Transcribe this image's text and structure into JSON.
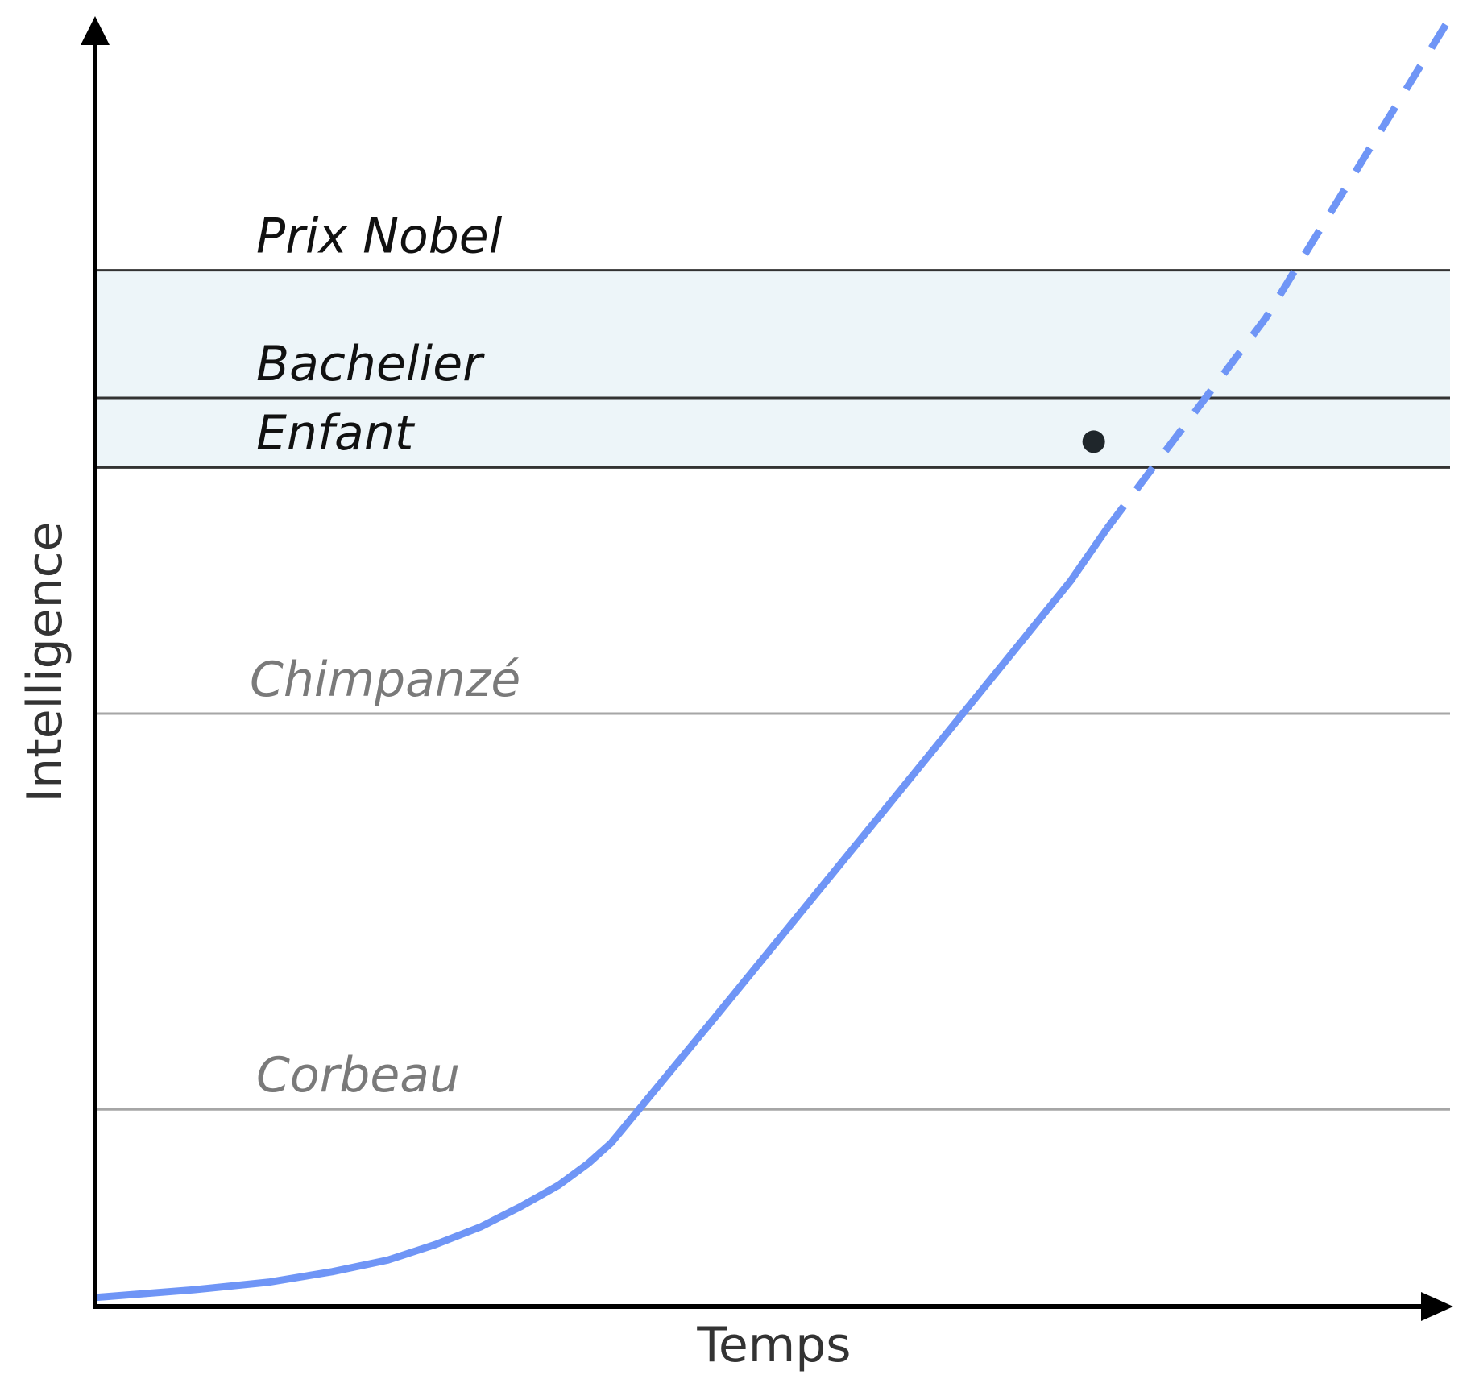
{
  "chart_data": {
    "type": "line",
    "title": "",
    "xlabel": "Temps",
    "ylabel": "Intelligence",
    "grid": false,
    "legend": "none",
    "xlim": [
      0,
      100
    ],
    "ylim": [
      0,
      100
    ],
    "colors": {
      "curve": "#6f95f6",
      "band": "#edf5f9",
      "human_line": "#333333",
      "animal_line": "#a6a6a6",
      "human_label": "#111111",
      "animal_label": "#7a7a7a",
      "marker": "#1f262b",
      "axis": "#000000"
    },
    "levels": [
      {
        "id": "corbeau",
        "label": "Corbeau",
        "y": 15.3,
        "kind": "animal"
      },
      {
        "id": "chimpanze",
        "label": "Chimpanzé",
        "y": 46.0,
        "kind": "animal"
      },
      {
        "id": "enfant",
        "label": "Enfant",
        "y": 65.1,
        "kind": "human"
      },
      {
        "id": "bachelier",
        "label": "Bachelier",
        "y": 70.5,
        "kind": "human"
      },
      {
        "id": "prix-nobel",
        "label": "Prix Nobel",
        "y": 80.4,
        "kind": "human"
      }
    ],
    "band": {
      "from": 65.1,
      "to": 80.4
    },
    "series": [
      {
        "style": "solid",
        "x": [
          0,
          7.3,
          12.9,
          17.5,
          21.6,
          25.1,
          28.5,
          31.5,
          34.2,
          36.4,
          38.1,
          45.8,
          57.7,
          72.0,
          74.7
        ],
        "y": [
          0.7,
          1.3,
          1.9,
          2.7,
          3.6,
          4.8,
          6.2,
          7.8,
          9.4,
          11.1,
          12.7,
          22.5,
          37.8,
          56.3,
          60.4
        ]
      },
      {
        "style": "dashed",
        "x": [
          74.7,
          86.4,
          100
        ],
        "y": [
          60.4,
          76.7,
          100
        ]
      }
    ],
    "marker": {
      "x": 73.7,
      "y": 67.1
    }
  }
}
